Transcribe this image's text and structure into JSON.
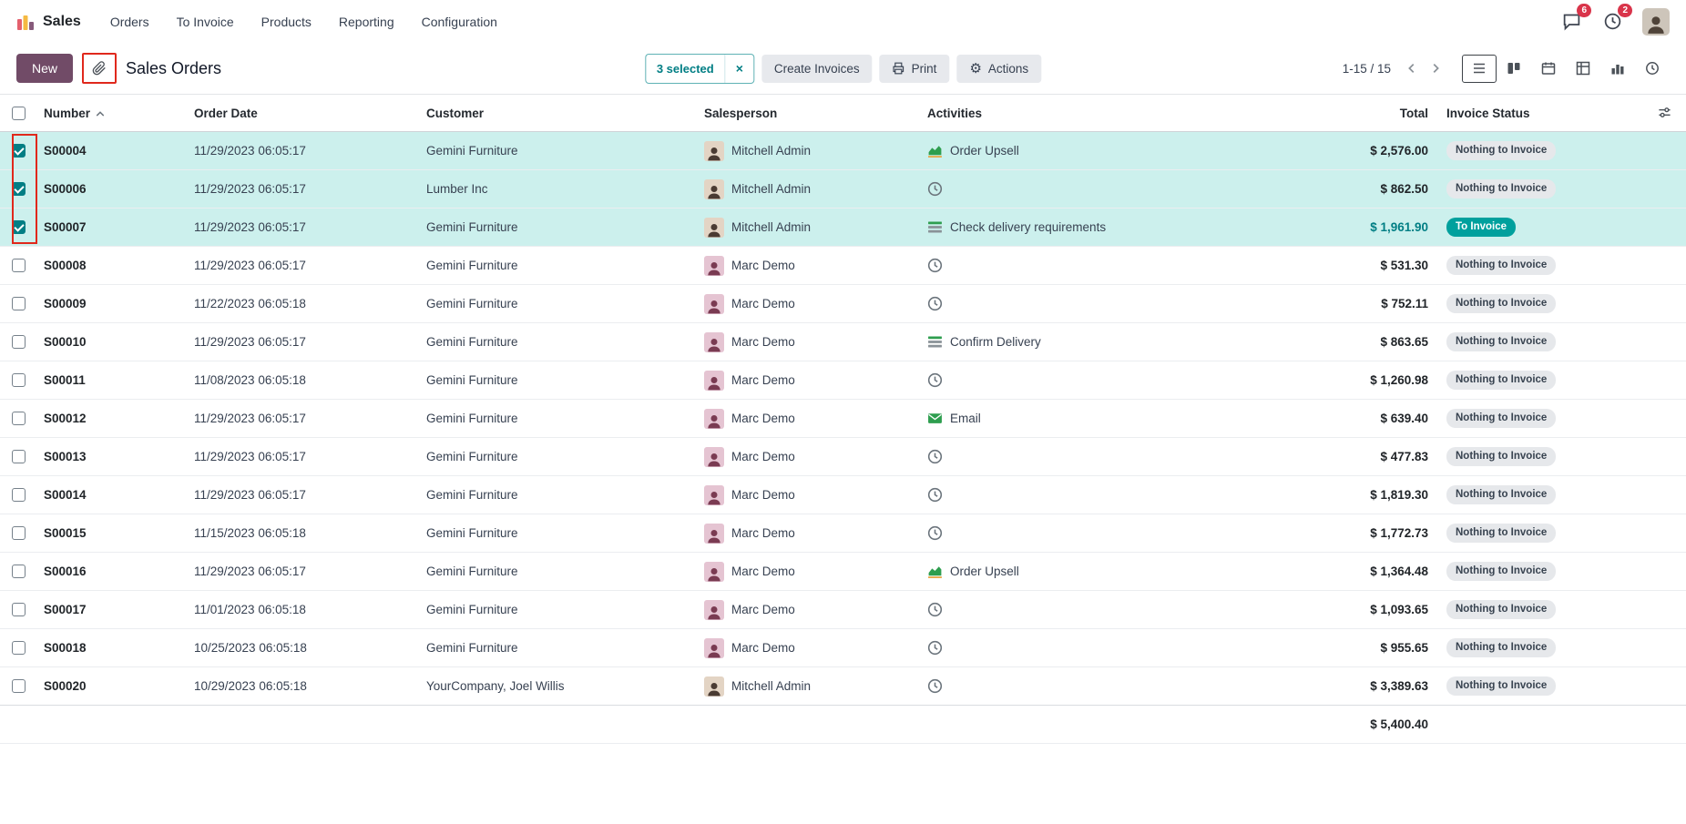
{
  "nav": {
    "app_label": "Sales",
    "items": [
      "Orders",
      "To Invoice",
      "Products",
      "Reporting",
      "Configuration"
    ],
    "message_count": "6",
    "activity_count": "2"
  },
  "control": {
    "new_label": "New",
    "breadcrumb": "Sales Orders",
    "selected_label": "3 selected",
    "clear_selection_glyph": "×",
    "create_invoices_label": "Create Invoices",
    "print_label": "Print",
    "actions_label": "Actions",
    "actions_gear_glyph": "⚙",
    "pager": "1-15 / 15"
  },
  "table": {
    "headers": [
      "Number",
      "Order Date",
      "Customer",
      "Salesperson",
      "Activities",
      "Total",
      "Invoice Status"
    ],
    "rows": [
      {
        "number": "S00004",
        "date": "11/29/2023 06:05:17",
        "customer": "Gemini Furniture",
        "salesperson": "Mitchell Admin",
        "activity_icon": "chart-icon",
        "activity": "Order Upsell",
        "total": "$ 2,576.00",
        "status": "Nothing to Invoice",
        "status_variant": "muted",
        "selected": true
      },
      {
        "number": "S00006",
        "date": "11/29/2023 06:05:17",
        "customer": "Lumber Inc",
        "salesperson": "Mitchell Admin",
        "activity_icon": "clock-icon",
        "activity": "",
        "total": "$ 862.50",
        "status": "Nothing to Invoice",
        "status_variant": "muted",
        "selected": true
      },
      {
        "number": "S00007",
        "date": "11/29/2023 06:05:17",
        "customer": "Gemini Furniture",
        "salesperson": "Mitchell Admin",
        "activity_icon": "tasks-icon",
        "activity": "Check delivery requirements",
        "total": "$ 1,961.90",
        "status": "To Invoice",
        "status_variant": "info",
        "selected": true
      },
      {
        "number": "S00008",
        "date": "11/29/2023 06:05:17",
        "customer": "Gemini Furniture",
        "salesperson": "Marc Demo",
        "activity_icon": "clock-icon",
        "activity": "",
        "total": "$ 531.30",
        "status": "Nothing to Invoice",
        "status_variant": "muted",
        "selected": false
      },
      {
        "number": "S00009",
        "date": "11/22/2023 06:05:18",
        "customer": "Gemini Furniture",
        "salesperson": "Marc Demo",
        "activity_icon": "clock-icon",
        "activity": "",
        "total": "$ 752.11",
        "status": "Nothing to Invoice",
        "status_variant": "muted",
        "selected": false
      },
      {
        "number": "S00010",
        "date": "11/29/2023 06:05:17",
        "customer": "Gemini Furniture",
        "salesperson": "Marc Demo",
        "activity_icon": "tasks-icon",
        "activity": "Confirm Delivery",
        "total": "$ 863.65",
        "status": "Nothing to Invoice",
        "status_variant": "muted",
        "selected": false
      },
      {
        "number": "S00011",
        "date": "11/08/2023 06:05:18",
        "customer": "Gemini Furniture",
        "salesperson": "Marc Demo",
        "activity_icon": "clock-icon",
        "activity": "",
        "total": "$ 1,260.98",
        "status": "Nothing to Invoice",
        "status_variant": "muted",
        "selected": false
      },
      {
        "number": "S00012",
        "date": "11/29/2023 06:05:17",
        "customer": "Gemini Furniture",
        "salesperson": "Marc Demo",
        "activity_icon": "email-icon",
        "activity": "Email",
        "total": "$ 639.40",
        "status": "Nothing to Invoice",
        "status_variant": "muted",
        "selected": false
      },
      {
        "number": "S00013",
        "date": "11/29/2023 06:05:17",
        "customer": "Gemini Furniture",
        "salesperson": "Marc Demo",
        "activity_icon": "clock-icon",
        "activity": "",
        "total": "$ 477.83",
        "status": "Nothing to Invoice",
        "status_variant": "muted",
        "selected": false
      },
      {
        "number": "S00014",
        "date": "11/29/2023 06:05:17",
        "customer": "Gemini Furniture",
        "salesperson": "Marc Demo",
        "activity_icon": "clock-icon",
        "activity": "",
        "total": "$ 1,819.30",
        "status": "Nothing to Invoice",
        "status_variant": "muted",
        "selected": false
      },
      {
        "number": "S00015",
        "date": "11/15/2023 06:05:18",
        "customer": "Gemini Furniture",
        "salesperson": "Marc Demo",
        "activity_icon": "clock-icon",
        "activity": "",
        "total": "$ 1,772.73",
        "status": "Nothing to Invoice",
        "status_variant": "muted",
        "selected": false
      },
      {
        "number": "S00016",
        "date": "11/29/2023 06:05:17",
        "customer": "Gemini Furniture",
        "salesperson": "Marc Demo",
        "activity_icon": "chart-icon",
        "activity": "Order Upsell",
        "total": "$ 1,364.48",
        "status": "Nothing to Invoice",
        "status_variant": "muted",
        "selected": false
      },
      {
        "number": "S00017",
        "date": "11/01/2023 06:05:18",
        "customer": "Gemini Furniture",
        "salesperson": "Marc Demo",
        "activity_icon": "clock-icon",
        "activity": "",
        "total": "$ 1,093.65",
        "status": "Nothing to Invoice",
        "status_variant": "muted",
        "selected": false
      },
      {
        "number": "S00018",
        "date": "10/25/2023 06:05:18",
        "customer": "Gemini Furniture",
        "salesperson": "Marc Demo",
        "activity_icon": "clock-icon",
        "activity": "",
        "total": "$ 955.65",
        "status": "Nothing to Invoice",
        "status_variant": "muted",
        "selected": false
      },
      {
        "number": "S00020",
        "date": "10/29/2023 06:05:18",
        "customer": "YourCompany, Joel Willis",
        "salesperson": "Mitchell Admin",
        "activity_icon": "clock-icon",
        "activity": "",
        "total": "$ 3,389.63",
        "status": "Nothing to Invoice",
        "status_variant": "muted",
        "selected": false
      }
    ],
    "footer_total": "$ 5,400.40"
  },
  "colors": {
    "primary": "#714B67",
    "info_text": "#017e84",
    "badge_info_bg": "#00a09d",
    "selected_row_bg": "#ccf0ed",
    "annotation_red": "#e0281c",
    "notification_red": "#d9344a",
    "activity_green": "#2e9e4f"
  }
}
